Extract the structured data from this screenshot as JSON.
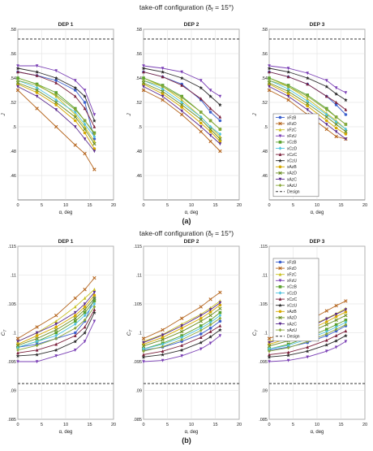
{
  "figure": {
    "sup_title_a": "take-off configuration (δ",
    "sup_title_a_sub": "f",
    "sup_title_a_tail": " = 15°)",
    "sup_title_b": "take-off configuration (δ",
    "sup_title_b_sub": "f",
    "sup_title_b_tail": " = 15°)",
    "label_a": "(a)",
    "label_b": "(b)"
  },
  "legend_entries": [
    "xFzB",
    "xFzD",
    "xFzC",
    "xFzU",
    "xCzB",
    "xCzD",
    "xCzC",
    "xCzU",
    "xAzB",
    "xAzD",
    "xAzC",
    "xAzU",
    "Design"
  ],
  "series_colors": [
    "#3a5fcd",
    "#b5651d",
    "#c8c020",
    "#7a3fb5",
    "#5aa02c",
    "#4fc3e0",
    "#7b1f3a",
    "#2b2b2b",
    "#d6a900",
    "#6b8e23",
    "#5b2c8f",
    "#8aa83a"
  ],
  "chart_data": [
    {
      "type": "line",
      "panel": "a1",
      "title": "DEP 1",
      "xlabel": "α, deg",
      "ylabel": "J",
      "xlim": [
        0,
        20
      ],
      "ylim": [
        0.44,
        0.58
      ],
      "xticks": [
        0,
        5,
        10,
        15,
        20
      ],
      "yticks": [
        0.46,
        0.48,
        0.5,
        0.52,
        0.54,
        0.56,
        0.58
      ],
      "grid": true,
      "x": [
        0,
        4,
        8,
        12,
        14,
        16
      ],
      "design": 0.572,
      "series": [
        {
          "values": [
            0.545,
            0.542,
            0.538,
            0.53,
            0.52,
            0.49
          ]
        },
        {
          "values": [
            0.53,
            0.515,
            0.5,
            0.485,
            0.478,
            0.465
          ]
        },
        {
          "values": [
            0.54,
            0.535,
            0.525,
            0.51,
            0.5,
            0.488
          ]
        },
        {
          "values": [
            0.55,
            0.55,
            0.546,
            0.538,
            0.53,
            0.51
          ]
        },
        {
          "values": [
            0.54,
            0.535,
            0.528,
            0.515,
            0.505,
            0.495
          ]
        },
        {
          "values": [
            0.538,
            0.532,
            0.522,
            0.512,
            0.502,
            0.492
          ]
        },
        {
          "values": [
            0.545,
            0.542,
            0.536,
            0.525,
            0.515,
            0.5
          ]
        },
        {
          "values": [
            0.548,
            0.545,
            0.54,
            0.532,
            0.525,
            0.505
          ]
        },
        {
          "values": [
            0.535,
            0.528,
            0.518,
            0.505,
            0.495,
            0.482
          ]
        },
        {
          "values": [
            0.536,
            0.53,
            0.52,
            0.508,
            0.498,
            0.486
          ]
        },
        {
          "values": [
            0.533,
            0.525,
            0.514,
            0.5,
            0.49,
            0.48
          ]
        },
        {
          "values": [
            0.538,
            0.534,
            0.526,
            0.514,
            0.505,
            0.494
          ]
        }
      ]
    },
    {
      "type": "line",
      "panel": "a2",
      "title": "DEP 2",
      "xlabel": "α, deg",
      "ylabel": "J",
      "xlim": [
        0,
        20
      ],
      "ylim": [
        0.44,
        0.58
      ],
      "xticks": [
        0,
        5,
        10,
        15,
        20
      ],
      "yticks": [
        0.46,
        0.48,
        0.5,
        0.52,
        0.54,
        0.56,
        0.58
      ],
      "grid": true,
      "x": [
        0,
        4,
        8,
        12,
        14,
        16
      ],
      "design": 0.572,
      "series": [
        {
          "values": [
            0.545,
            0.541,
            0.535,
            0.522,
            0.512,
            0.505
          ]
        },
        {
          "values": [
            0.53,
            0.522,
            0.51,
            0.496,
            0.488,
            0.48
          ]
        },
        {
          "values": [
            0.54,
            0.533,
            0.522,
            0.508,
            0.5,
            0.492
          ]
        },
        {
          "values": [
            0.55,
            0.548,
            0.545,
            0.538,
            0.53,
            0.525
          ]
        },
        {
          "values": [
            0.54,
            0.534,
            0.525,
            0.512,
            0.505,
            0.498
          ]
        },
        {
          "values": [
            0.538,
            0.531,
            0.52,
            0.508,
            0.5,
            0.494
          ]
        },
        {
          "values": [
            0.545,
            0.541,
            0.534,
            0.523,
            0.515,
            0.508
          ]
        },
        {
          "values": [
            0.548,
            0.545,
            0.54,
            0.532,
            0.525,
            0.518
          ]
        },
        {
          "values": [
            0.535,
            0.527,
            0.516,
            0.503,
            0.496,
            0.488
          ]
        },
        {
          "values": [
            0.536,
            0.529,
            0.518,
            0.506,
            0.498,
            0.49
          ]
        },
        {
          "values": [
            0.533,
            0.525,
            0.513,
            0.5,
            0.493,
            0.486
          ]
        },
        {
          "values": [
            0.538,
            0.533,
            0.524,
            0.512,
            0.505,
            0.498
          ]
        }
      ]
    },
    {
      "type": "line",
      "panel": "a3",
      "title": "DEP 3",
      "xlabel": "α, deg",
      "ylabel": "J",
      "xlim": [
        0,
        20
      ],
      "ylim": [
        0.44,
        0.58
      ],
      "xticks": [
        0,
        5,
        10,
        15,
        20
      ],
      "yticks": [
        0.46,
        0.48,
        0.5,
        0.52,
        0.54,
        0.56,
        0.58
      ],
      "grid": true,
      "x": [
        0,
        4,
        8,
        12,
        14,
        16
      ],
      "design": 0.572,
      "series": [
        {
          "values": [
            0.545,
            0.541,
            0.535,
            0.525,
            0.518,
            0.51
          ]
        },
        {
          "values": [
            0.53,
            0.522,
            0.51,
            0.498,
            0.492,
            0.49
          ]
        },
        {
          "values": [
            0.54,
            0.533,
            0.523,
            0.511,
            0.505,
            0.498
          ]
        },
        {
          "values": [
            0.55,
            0.548,
            0.544,
            0.538,
            0.532,
            0.528
          ]
        },
        {
          "values": [
            0.54,
            0.534,
            0.526,
            0.515,
            0.508,
            0.502
          ]
        },
        {
          "values": [
            0.538,
            0.531,
            0.521,
            0.51,
            0.504,
            0.498
          ]
        },
        {
          "values": [
            0.545,
            0.541,
            0.535,
            0.525,
            0.52,
            0.514
          ]
        },
        {
          "values": [
            0.548,
            0.545,
            0.54,
            0.533,
            0.527,
            0.522
          ]
        },
        {
          "values": [
            0.535,
            0.527,
            0.517,
            0.505,
            0.499,
            0.494
          ]
        },
        {
          "values": [
            0.536,
            0.529,
            0.519,
            0.508,
            0.502,
            0.496
          ]
        },
        {
          "values": [
            0.533,
            0.525,
            0.514,
            0.502,
            0.496,
            0.49
          ]
        },
        {
          "values": [
            0.538,
            0.533,
            0.525,
            0.514,
            0.508,
            0.502
          ]
        }
      ]
    },
    {
      "type": "line",
      "panel": "b1",
      "title": "DEP 1",
      "xlabel": "α, deg",
      "ylabel": "C",
      "ylabel_sub": "T",
      "xlim": [
        0,
        20
      ],
      "ylim": [
        0.085,
        0.115
      ],
      "xticks": [
        0,
        5,
        10,
        15,
        20
      ],
      "yticks": [
        0.085,
        0.09,
        0.095,
        0.1,
        0.105,
        0.11,
        0.115
      ],
      "grid": true,
      "x": [
        0,
        4,
        8,
        12,
        14,
        16
      ],
      "design": 0.0912,
      "series": [
        {
          "values": [
            0.0975,
            0.098,
            0.099,
            0.1,
            0.102,
            0.106
          ]
        },
        {
          "values": [
            0.099,
            0.101,
            0.103,
            0.106,
            0.1075,
            0.1095
          ]
        },
        {
          "values": [
            0.0985,
            0.1,
            0.102,
            0.1045,
            0.106,
            0.1075
          ]
        },
        {
          "values": [
            0.095,
            0.095,
            0.096,
            0.097,
            0.0985,
            0.102
          ]
        },
        {
          "values": [
            0.0975,
            0.0985,
            0.1,
            0.102,
            0.1035,
            0.1055
          ]
        },
        {
          "values": [
            0.0975,
            0.0985,
            0.0995,
            0.1015,
            0.103,
            0.105
          ]
        },
        {
          "values": [
            0.0965,
            0.097,
            0.098,
            0.0995,
            0.101,
            0.104
          ]
        },
        {
          "values": [
            0.096,
            0.0962,
            0.097,
            0.0985,
            0.1,
            0.1035
          ]
        },
        {
          "values": [
            0.098,
            0.0995,
            0.101,
            0.103,
            0.1045,
            0.1065
          ]
        },
        {
          "values": [
            0.0978,
            0.099,
            0.1005,
            0.1025,
            0.104,
            0.106
          ]
        },
        {
          "values": [
            0.0985,
            0.1,
            0.1015,
            0.1035,
            0.105,
            0.107
          ]
        },
        {
          "values": [
            0.097,
            0.0978,
            0.099,
            0.1008,
            0.1022,
            0.1045
          ]
        }
      ]
    },
    {
      "type": "line",
      "panel": "b2",
      "title": "DEP 2",
      "xlabel": "α, deg",
      "ylabel": "C",
      "ylabel_sub": "T",
      "xlim": [
        0,
        20
      ],
      "ylim": [
        0.085,
        0.115
      ],
      "xticks": [
        0,
        5,
        10,
        15,
        20
      ],
      "yticks": [
        0.085,
        0.09,
        0.095,
        0.1,
        0.105,
        0.11,
        0.115
      ],
      "grid": true,
      "x": [
        0,
        4,
        8,
        12,
        14,
        16
      ],
      "design": 0.0912,
      "series": [
        {
          "values": [
            0.097,
            0.0975,
            0.0985,
            0.0998,
            0.1008,
            0.102
          ]
        },
        {
          "values": [
            0.099,
            0.1005,
            0.1025,
            0.1045,
            0.1058,
            0.107
          ]
        },
        {
          "values": [
            0.0985,
            0.0997,
            0.1015,
            0.1032,
            0.1043,
            0.1055
          ]
        },
        {
          "values": [
            0.095,
            0.0952,
            0.096,
            0.0972,
            0.0982,
            0.0995
          ]
        },
        {
          "values": [
            0.0972,
            0.0982,
            0.0995,
            0.1012,
            0.1022,
            0.1035
          ]
        },
        {
          "values": [
            0.0972,
            0.098,
            0.0992,
            0.1008,
            0.1018,
            0.103
          ]
        },
        {
          "values": [
            0.0962,
            0.0968,
            0.0978,
            0.0992,
            0.1002,
            0.1012
          ]
        },
        {
          "values": [
            0.0958,
            0.0962,
            0.097,
            0.0983,
            0.0993,
            0.1005
          ]
        },
        {
          "values": [
            0.098,
            0.0992,
            0.1008,
            0.1025,
            0.1036,
            0.1048
          ]
        },
        {
          "values": [
            0.0977,
            0.0988,
            0.1002,
            0.102,
            0.103,
            0.1042
          ]
        },
        {
          "values": [
            0.0983,
            0.0996,
            0.1012,
            0.103,
            0.104,
            0.1052
          ]
        },
        {
          "values": [
            0.0968,
            0.0976,
            0.0988,
            0.1004,
            0.1014,
            0.1025
          ]
        }
      ]
    },
    {
      "type": "line",
      "panel": "b3",
      "title": "DEP 3",
      "xlabel": "α, deg",
      "ylabel": "C",
      "ylabel_sub": "T",
      "xlim": [
        0,
        20
      ],
      "ylim": [
        0.085,
        0.115
      ],
      "xticks": [
        0,
        5,
        10,
        15,
        20
      ],
      "yticks": [
        0.085,
        0.09,
        0.095,
        0.1,
        0.105,
        0.11,
        0.115
      ],
      "grid": true,
      "x": [
        0,
        4,
        8,
        12,
        14,
        16
      ],
      "design": 0.0912,
      "series": [
        {
          "values": [
            0.097,
            0.0975,
            0.0983,
            0.0995,
            0.1003,
            0.1012
          ]
        },
        {
          "values": [
            0.099,
            0.1003,
            0.102,
            0.1038,
            0.1047,
            0.1055
          ]
        },
        {
          "values": [
            0.0985,
            0.0995,
            0.101,
            0.1025,
            0.1033,
            0.1042
          ]
        },
        {
          "values": [
            0.095,
            0.0952,
            0.0958,
            0.0968,
            0.0975,
            0.0985
          ]
        },
        {
          "values": [
            0.0972,
            0.098,
            0.0992,
            0.1006,
            0.1014,
            0.1022
          ]
        },
        {
          "values": [
            0.0972,
            0.0978,
            0.0989,
            0.1002,
            0.101,
            0.1018
          ]
        },
        {
          "values": [
            0.0962,
            0.0966,
            0.0975,
            0.0987,
            0.0995,
            0.1003
          ]
        },
        {
          "values": [
            0.0958,
            0.0961,
            0.0968,
            0.0979,
            0.0986,
            0.0995
          ]
        },
        {
          "values": [
            0.098,
            0.099,
            0.1004,
            0.1019,
            0.1028,
            0.1036
          ]
        },
        {
          "values": [
            0.0977,
            0.0986,
            0.0999,
            0.1014,
            0.1022,
            0.103
          ]
        },
        {
          "values": [
            0.0983,
            0.0994,
            0.1008,
            0.1024,
            0.1032,
            0.104
          ]
        },
        {
          "values": [
            0.0968,
            0.0974,
            0.0985,
            0.0998,
            0.1006,
            0.1014
          ]
        }
      ]
    }
  ]
}
